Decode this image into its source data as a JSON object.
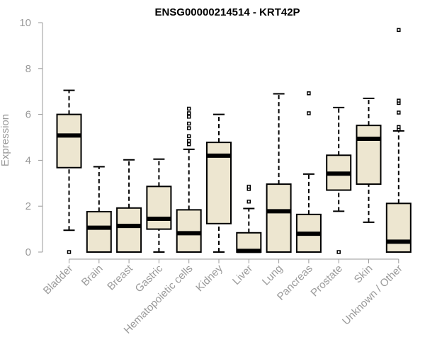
{
  "chart_data": {
    "type": "box",
    "title": "ENSG00000214514 - KRT42P",
    "xlabel": "",
    "ylabel": "Expression",
    "ylim": [
      0,
      10
    ],
    "yticks": [
      "0",
      "2",
      "4",
      "6",
      "8",
      "10"
    ],
    "grid": false,
    "colors": {
      "box_fill": "#ede6d0",
      "stroke": "#000000",
      "axis": "#9a9a9a"
    },
    "categories": [
      "Bladder",
      "Brain",
      "Breast",
      "Gastric",
      "Hematopoietic cells",
      "Kidney",
      "Liver",
      "Lung",
      "Pancreas",
      "Prostate",
      "Skin",
      "Unknown / Other"
    ],
    "boxes": [
      {
        "min": 0.95,
        "q1": 3.68,
        "median": 5.08,
        "q3": 6.0,
        "max": 7.05,
        "outliers": [
          0.0
        ]
      },
      {
        "min": 0.0,
        "q1": 0.0,
        "median": 1.06,
        "q3": 1.76,
        "max": 3.72,
        "outliers": []
      },
      {
        "min": 0.0,
        "q1": 0.0,
        "median": 1.14,
        "q3": 1.92,
        "max": 4.02,
        "outliers": []
      },
      {
        "min": 0.0,
        "q1": 1.0,
        "median": 1.45,
        "q3": 2.86,
        "max": 4.05,
        "outliers": []
      },
      {
        "min": 0.0,
        "q1": 0.0,
        "median": 0.82,
        "q3": 1.84,
        "max": 4.48,
        "outliers": [
          4.7,
          4.85,
          5.05,
          5.4,
          5.6,
          5.9,
          6.05,
          6.25
        ]
      },
      {
        "min": 0.0,
        "q1": 1.24,
        "median": 4.2,
        "q3": 4.78,
        "max": 6.0,
        "outliers": []
      },
      {
        "min": 0.0,
        "q1": 0.0,
        "median": 0.05,
        "q3": 0.84,
        "max": 1.9,
        "outliers": [
          2.2,
          2.75,
          2.85
        ]
      },
      {
        "min": 0.0,
        "q1": 0.0,
        "median": 1.78,
        "q3": 2.96,
        "max": 6.9,
        "outliers": []
      },
      {
        "min": 0.0,
        "q1": 0.0,
        "median": 0.8,
        "q3": 1.64,
        "max": 3.4,
        "outliers": [
          6.05,
          6.92
        ]
      },
      {
        "min": 1.78,
        "q1": 2.7,
        "median": 3.42,
        "q3": 4.22,
        "max": 6.3,
        "outliers": [
          0.0
        ]
      },
      {
        "min": 1.3,
        "q1": 2.96,
        "median": 4.94,
        "q3": 5.52,
        "max": 6.7,
        "outliers": []
      },
      {
        "min": 0.0,
        "q1": 0.0,
        "median": 0.45,
        "q3": 2.12,
        "max": 5.28,
        "outliers": [
          5.35,
          5.45,
          6.08,
          6.5,
          6.6,
          9.68
        ]
      }
    ]
  }
}
